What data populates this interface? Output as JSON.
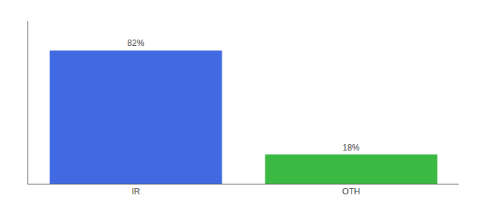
{
  "chart_data": {
    "type": "bar",
    "categories": [
      "IR",
      "OTH"
    ],
    "values": [
      82,
      18
    ],
    "value_labels": [
      "82%",
      "18%"
    ],
    "colors": [
      "#4169E1",
      "#3CB943"
    ],
    "ylim": [
      0,
      100
    ],
    "data_labels": true,
    "tick_labels": "x",
    "grid": false
  }
}
